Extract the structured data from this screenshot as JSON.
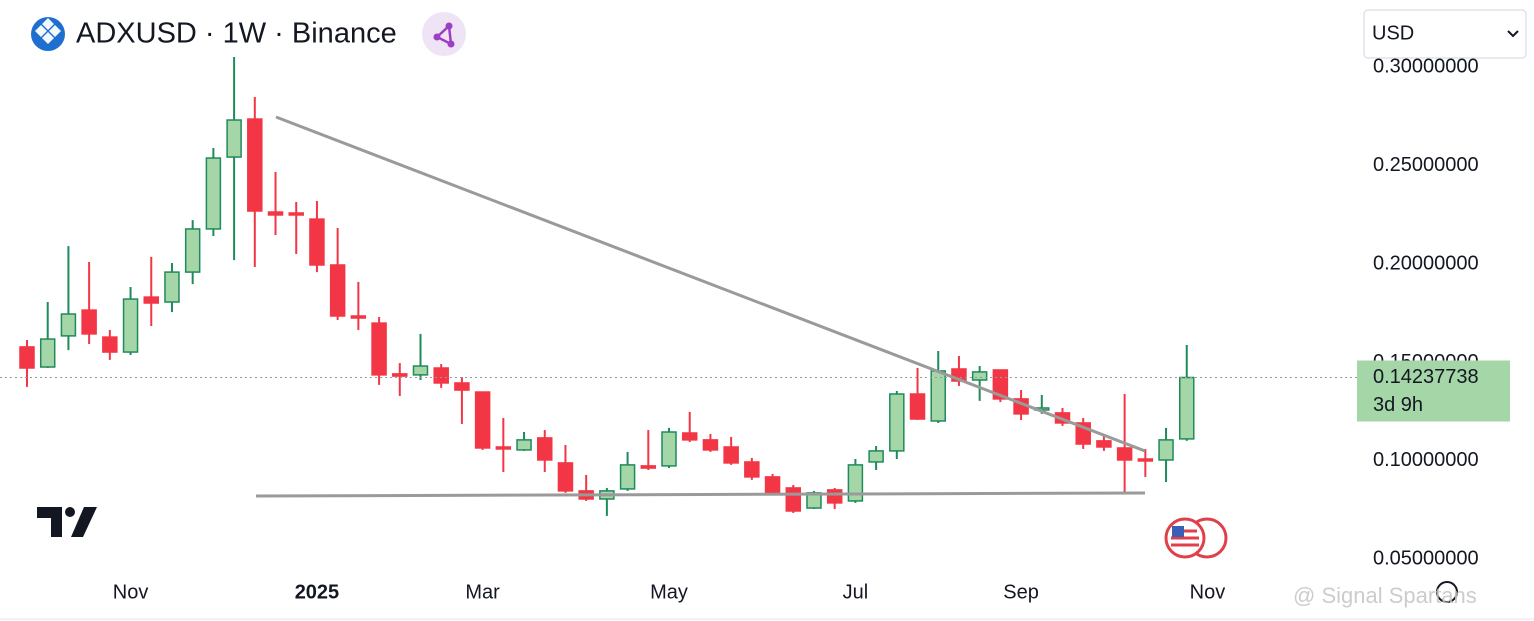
{
  "chart_data": {
    "type": "candlestick",
    "title": "ADXUSD · 1W · Binance",
    "currency": "USD",
    "categories": [
      null,
      null,
      null,
      null,
      null,
      "Nov",
      null,
      null,
      null,
      null,
      null,
      null,
      null,
      null,
      "2025",
      null,
      null,
      null,
      null,
      null,
      null,
      null,
      "Mar",
      null,
      null,
      null,
      null,
      null,
      null,
      null,
      null,
      "May",
      null,
      null,
      null,
      null,
      null,
      null,
      null,
      null,
      "Jul",
      null,
      null,
      null,
      null,
      null,
      null,
      null,
      "Sep",
      null,
      null,
      null,
      null,
      null,
      null,
      null,
      null,
      "Nov"
    ],
    "open": [
      0.1579,
      0.1477,
      0.1635,
      0.1766,
      0.1629,
      0.1553,
      0.1832,
      0.1807,
      0.1959,
      0.2178,
      0.2543,
      0.2736,
      0.2264,
      0.2259,
      0.2228,
      0.1995,
      0.1736,
      0.17,
      0.1442,
      0.1437,
      0.1472,
      0.1396,
      0.135,
      0.1071,
      0.1056,
      0.1117,
      0.099,
      0.0848,
      0.0807,
      0.0858,
      0.0975,
      0.0975,
      0.1142,
      0.1107,
      0.1071,
      0.0995,
      0.0919,
      0.0863,
      0.0761,
      0.0853,
      0.0797,
      0.0995,
      0.1051,
      0.134,
      0.1203,
      0.1467,
      0.1411,
      0.1462,
      0.1315,
      0.1259,
      0.1244,
      0.1193,
      0.1102,
      0.1066,
      0.101,
      0.1005,
      0.1112,
      null
    ],
    "high": [
      0.1614,
      0.1807,
      0.2091,
      0.201,
      0.1665,
      0.1883,
      0.2036,
      0.2005,
      0.2223,
      0.2589,
      0.3051,
      0.2848,
      0.2467,
      0.2315,
      0.232,
      0.2183,
      0.1909,
      0.1731,
      0.1497,
      0.1645,
      0.1492,
      0.1426,
      0.135,
      0.1218,
      0.1147,
      0.1157,
      0.1081,
      0.0929,
      0.0863,
      0.1046,
      0.1157,
      0.1168,
      0.1249,
      0.1137,
      0.1122,
      0.1015,
      0.0934,
      0.0878,
      0.0848,
      0.0863,
      0.101,
      0.1076,
      0.1355,
      0.1472,
      0.1558,
      0.1533,
      0.1482,
      0.1462,
      0.136,
      0.1335,
      0.1269,
      0.1218,
      0.1127,
      0.134,
      0.1061,
      0.1168,
      0.1589,
      null
    ],
    "low": [
      0.1376,
      0.1472,
      0.1563,
      0.1594,
      0.1513,
      0.1538,
      0.1685,
      0.1756,
      0.1898,
      0.2142,
      0.202,
      0.1985,
      0.2147,
      0.2051,
      0.1959,
      0.1716,
      0.1665,
      0.1386,
      0.133,
      0.1411,
      0.1371,
      0.1188,
      0.1056,
      0.0944,
      0.1051,
      0.0944,
      0.0838,
      0.0797,
      0.0721,
      0.0848,
      0.0954,
      0.0964,
      0.1096,
      0.1046,
      0.098,
      0.0904,
      0.0832,
      0.0736,
      0.0756,
      0.0756,
      0.0787,
      0.0954,
      0.101,
      0.1208,
      0.1193,
      0.1381,
      0.1305,
      0.1299,
      0.1208,
      0.1239,
      0.1178,
      0.1061,
      0.1051,
      0.0838,
      0.0919,
      0.0893,
      0.1102,
      null
    ],
    "close": [
      0.1472,
      0.1619,
      0.1746,
      0.1645,
      0.1553,
      0.1822,
      0.1802,
      0.1959,
      0.2178,
      0.2538,
      0.2731,
      0.2269,
      0.2249,
      0.2249,
      0.1995,
      0.1736,
      0.1726,
      0.1437,
      0.1431,
      0.1482,
      0.1396,
      0.136,
      0.1066,
      0.1061,
      0.1107,
      0.1005,
      0.0848,
      0.0807,
      0.0848,
      0.098,
      0.0964,
      0.1147,
      0.1107,
      0.1056,
      0.099,
      0.0919,
      0.0838,
      0.0746,
      0.0838,
      0.0787,
      0.098,
      0.1051,
      0.134,
      0.1213,
      0.1457,
      0.1406,
      0.1452,
      0.1315,
      0.1239,
      0.1269,
      0.1193,
      0.1086,
      0.1071,
      0.1005,
      0.1,
      0.1107,
      0.14237738,
      null
    ],
    "up_color": "#a5d6a7",
    "up_border": "#1f8a5b",
    "down_color": "#f23645",
    "countdown": "3d 9h",
    "ylim": [
      0.0421,
      0.3051
    ],
    "yticks": [
      {
        "value": 0.05,
        "label": "0.05000000"
      },
      {
        "value": 0.1,
        "label": "0.10000000"
      },
      {
        "value": 0.15,
        "label": "0.15000000"
      },
      {
        "value": 0.2,
        "label": "0.20000000"
      },
      {
        "value": 0.25,
        "label": "0.25000000"
      },
      {
        "value": 0.3,
        "label": "0.30000000"
      }
    ],
    "watermark": "@ Signal Spartans"
  }
}
